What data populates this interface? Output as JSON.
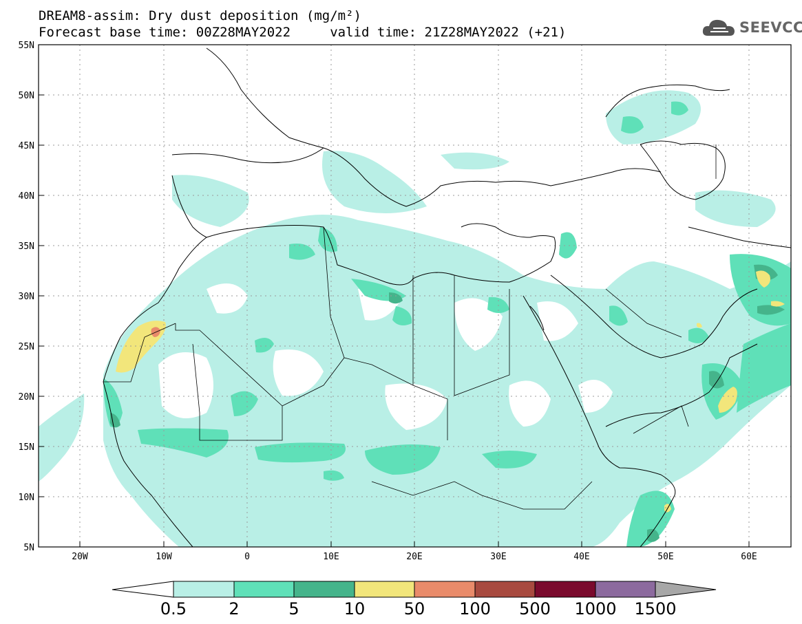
{
  "map": {
    "title_line1": "DREAM8-assim: Dry dust deposition (mg/m²)",
    "title_line2": "Forecast base time: 00Z28MAY2022     valid time: 21Z28MAY2022 (+21)",
    "logo_text": "SEEVCCC",
    "logo_icon": "cloud-icon",
    "lon_labels": [
      "20W",
      "10W",
      "0",
      "10E",
      "20E",
      "30E",
      "40E",
      "50E",
      "60E"
    ],
    "lat_labels": [
      "55N",
      "50N",
      "45N",
      "40N",
      "35N",
      "30N",
      "25N",
      "20N",
      "15N",
      "10N",
      "5N"
    ],
    "colorbar": {
      "labels": [
        "0.5",
        "2",
        "5",
        "10",
        "50",
        "100",
        "500",
        "1000",
        "1500"
      ],
      "colors": [
        "#b9efe6",
        "#5fe0b8",
        "#45b48b",
        "#f2e67b",
        "#e98b6a",
        "#a84a3f",
        "#7a0a2d",
        "#8c6a9e",
        "#a7a7a7"
      ]
    }
  },
  "colors": {
    "frame": "#000000",
    "grid": "#9a9a9a",
    "coast": "#000000"
  }
}
